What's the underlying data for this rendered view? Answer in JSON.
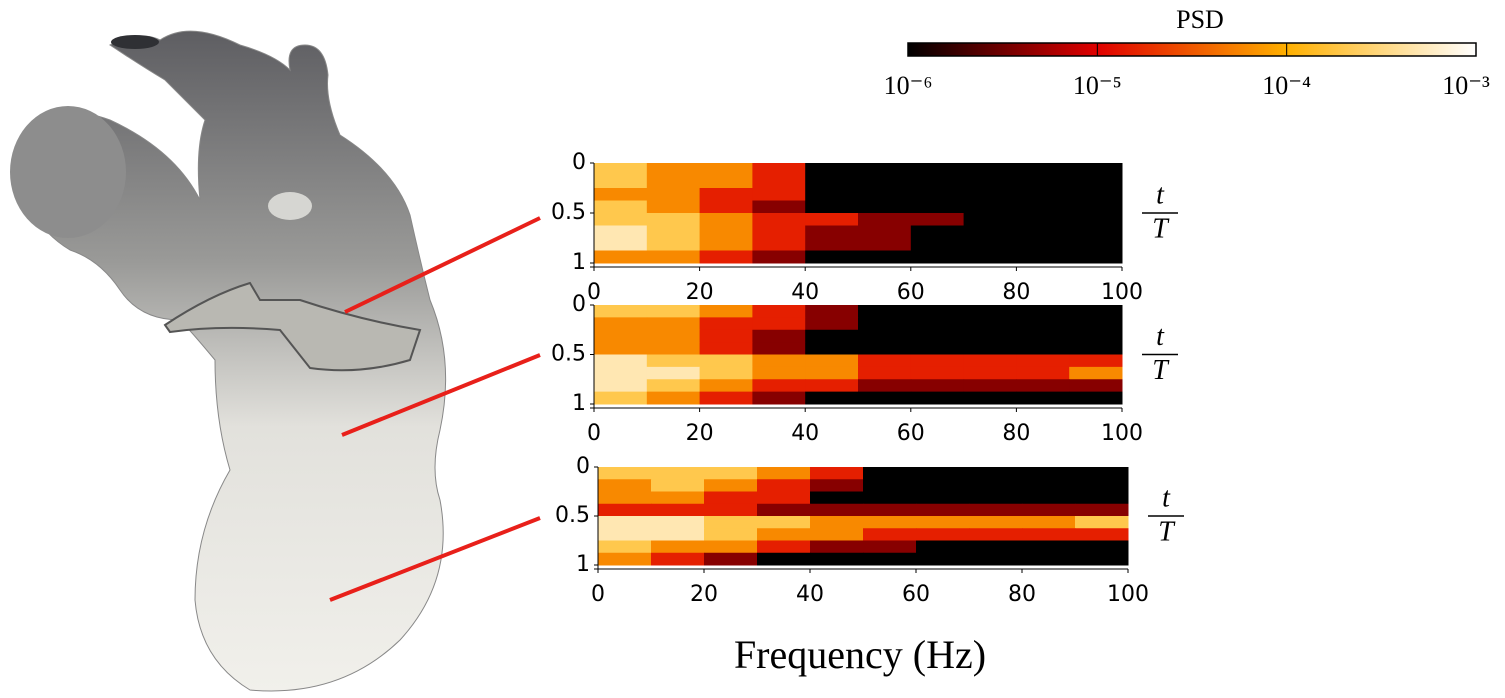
{
  "colorbar": {
    "title": "PSD",
    "scale": "log",
    "zlim": [
      1e-06,
      0.001
    ],
    "ticks": [
      {
        "value": 1e-06,
        "label": "10⁻⁶"
      },
      {
        "value": 1e-05,
        "label": "10⁻⁵"
      },
      {
        "value": 0.0001,
        "label": "10⁻⁴"
      },
      {
        "value": 0.001,
        "label": "10⁻³"
      }
    ],
    "colors": [
      "#000000",
      "#e00000",
      "#ffb000",
      "#ffffff"
    ]
  },
  "chart_data": [
    {
      "type": "heatmap",
      "xlim": [
        0,
        100
      ],
      "xticks": [
        0,
        20,
        40,
        60,
        80,
        100
      ],
      "ylim": [
        0,
        1
      ],
      "yaxis_reversed": true,
      "yticks": [
        0,
        0.5,
        1
      ],
      "ylabel": [
        "t",
        "T"
      ],
      "xbins": [
        0,
        10,
        20,
        30,
        40,
        50,
        60,
        70,
        80,
        90,
        100
      ],
      "ybins": [
        0,
        0.125,
        0.25,
        0.375,
        0.5,
        0.625,
        0.75,
        0.875,
        1
      ],
      "z": [
        [
          0.0002,
          6e-05,
          6e-05,
          1.5e-05,
          1e-06,
          1e-06,
          1e-06,
          1e-06,
          1e-06,
          1e-06
        ],
        [
          0.0002,
          6e-05,
          6e-05,
          1.5e-05,
          1e-06,
          1e-06,
          1e-06,
          1e-06,
          1e-06,
          1e-06
        ],
        [
          6e-05,
          6e-05,
          1.5e-05,
          1.5e-05,
          1e-06,
          1e-06,
          1e-06,
          1e-06,
          1e-06,
          1e-06
        ],
        [
          0.0002,
          6e-05,
          1.5e-05,
          4e-06,
          1e-06,
          1e-06,
          1e-06,
          1e-06,
          1e-06,
          1e-06
        ],
        [
          0.0002,
          0.0002,
          6e-05,
          1.5e-05,
          1.5e-05,
          4e-06,
          4e-06,
          1e-06,
          1e-06,
          1e-06
        ],
        [
          0.0005,
          0.0002,
          6e-05,
          1.5e-05,
          4e-06,
          4e-06,
          1e-06,
          1e-06,
          1e-06,
          1e-06
        ],
        [
          0.0005,
          0.0002,
          6e-05,
          1.5e-05,
          4e-06,
          4e-06,
          1e-06,
          1e-06,
          1e-06,
          1e-06
        ],
        [
          6e-05,
          6e-05,
          1.5e-05,
          4e-06,
          1e-06,
          1e-06,
          1e-06,
          1e-06,
          1e-06,
          1e-06
        ]
      ]
    },
    {
      "type": "heatmap",
      "xlim": [
        0,
        100
      ],
      "xticks": [
        0,
        20,
        40,
        60,
        80,
        100
      ],
      "ylim": [
        0,
        1
      ],
      "yaxis_reversed": true,
      "yticks": [
        0,
        0.5,
        1
      ],
      "ylabel": [
        "t",
        "T"
      ],
      "xbins": [
        0,
        10,
        20,
        30,
        40,
        50,
        60,
        70,
        80,
        90,
        100
      ],
      "ybins": [
        0,
        0.125,
        0.25,
        0.375,
        0.5,
        0.625,
        0.75,
        0.875,
        1
      ],
      "z": [
        [
          0.0002,
          0.0002,
          6e-05,
          1.5e-05,
          4e-06,
          1e-06,
          1e-06,
          1e-06,
          1e-06,
          1e-06
        ],
        [
          6e-05,
          6e-05,
          1.5e-05,
          1.5e-05,
          4e-06,
          1e-06,
          1e-06,
          1e-06,
          1e-06,
          1e-06
        ],
        [
          6e-05,
          6e-05,
          1.5e-05,
          4e-06,
          1e-06,
          1e-06,
          1e-06,
          1e-06,
          1e-06,
          1e-06
        ],
        [
          6e-05,
          6e-05,
          1.5e-05,
          4e-06,
          1e-06,
          1e-06,
          1e-06,
          1e-06,
          1e-06,
          1e-06
        ],
        [
          0.0005,
          0.0002,
          0.0002,
          6e-05,
          6e-05,
          1.5e-05,
          1.5e-05,
          1.5e-05,
          1.5e-05,
          1.5e-05
        ],
        [
          0.0005,
          0.0005,
          0.0002,
          6e-05,
          6e-05,
          1.5e-05,
          1.5e-05,
          1.5e-05,
          1.5e-05,
          6e-05
        ],
        [
          0.0005,
          0.0002,
          6e-05,
          1.5e-05,
          1.5e-05,
          4e-06,
          4e-06,
          4e-06,
          4e-06,
          4e-06
        ],
        [
          0.0002,
          6e-05,
          1.5e-05,
          4e-06,
          1e-06,
          1e-06,
          1e-06,
          1e-06,
          1e-06,
          1e-06
        ]
      ]
    },
    {
      "type": "heatmap",
      "xlim": [
        0,
        100
      ],
      "xticks": [
        0,
        20,
        40,
        60,
        80,
        100
      ],
      "ylim": [
        0,
        1
      ],
      "yaxis_reversed": true,
      "yticks": [
        0,
        0.5,
        1
      ],
      "ylabel": [
        "t",
        "T"
      ],
      "xlabel": "Frequency (Hz)",
      "xbins": [
        0,
        10,
        20,
        30,
        40,
        50,
        60,
        70,
        80,
        90,
        100
      ],
      "ybins": [
        0,
        0.125,
        0.25,
        0.375,
        0.5,
        0.625,
        0.75,
        0.875,
        1
      ],
      "z": [
        [
          0.0002,
          0.0002,
          0.0002,
          6e-05,
          1.5e-05,
          1e-06,
          1e-06,
          1e-06,
          1e-06,
          1e-06
        ],
        [
          6e-05,
          0.0002,
          6e-05,
          1.5e-05,
          4e-06,
          1e-06,
          1e-06,
          1e-06,
          1e-06,
          1e-06
        ],
        [
          6e-05,
          6e-05,
          1.5e-05,
          1.5e-05,
          1e-06,
          1e-06,
          1e-06,
          1e-06,
          1e-06,
          1e-06
        ],
        [
          1.5e-05,
          1.5e-05,
          1.5e-05,
          4e-06,
          4e-06,
          4e-06,
          4e-06,
          4e-06,
          4e-06,
          4e-06
        ],
        [
          0.0005,
          0.0005,
          0.0002,
          0.0002,
          6e-05,
          6e-05,
          6e-05,
          6e-05,
          6e-05,
          0.0002
        ],
        [
          0.0005,
          0.0005,
          0.0002,
          6e-05,
          6e-05,
          1.5e-05,
          1.5e-05,
          1.5e-05,
          1.5e-05,
          1.5e-05
        ],
        [
          0.0002,
          6e-05,
          6e-05,
          1.5e-05,
          4e-06,
          4e-06,
          1e-06,
          1e-06,
          1e-06,
          1e-06
        ],
        [
          6e-05,
          1.5e-05,
          4e-06,
          1e-06,
          1e-06,
          1e-06,
          1e-06,
          1e-06,
          1e-06,
          1e-06
        ]
      ]
    }
  ]
}
